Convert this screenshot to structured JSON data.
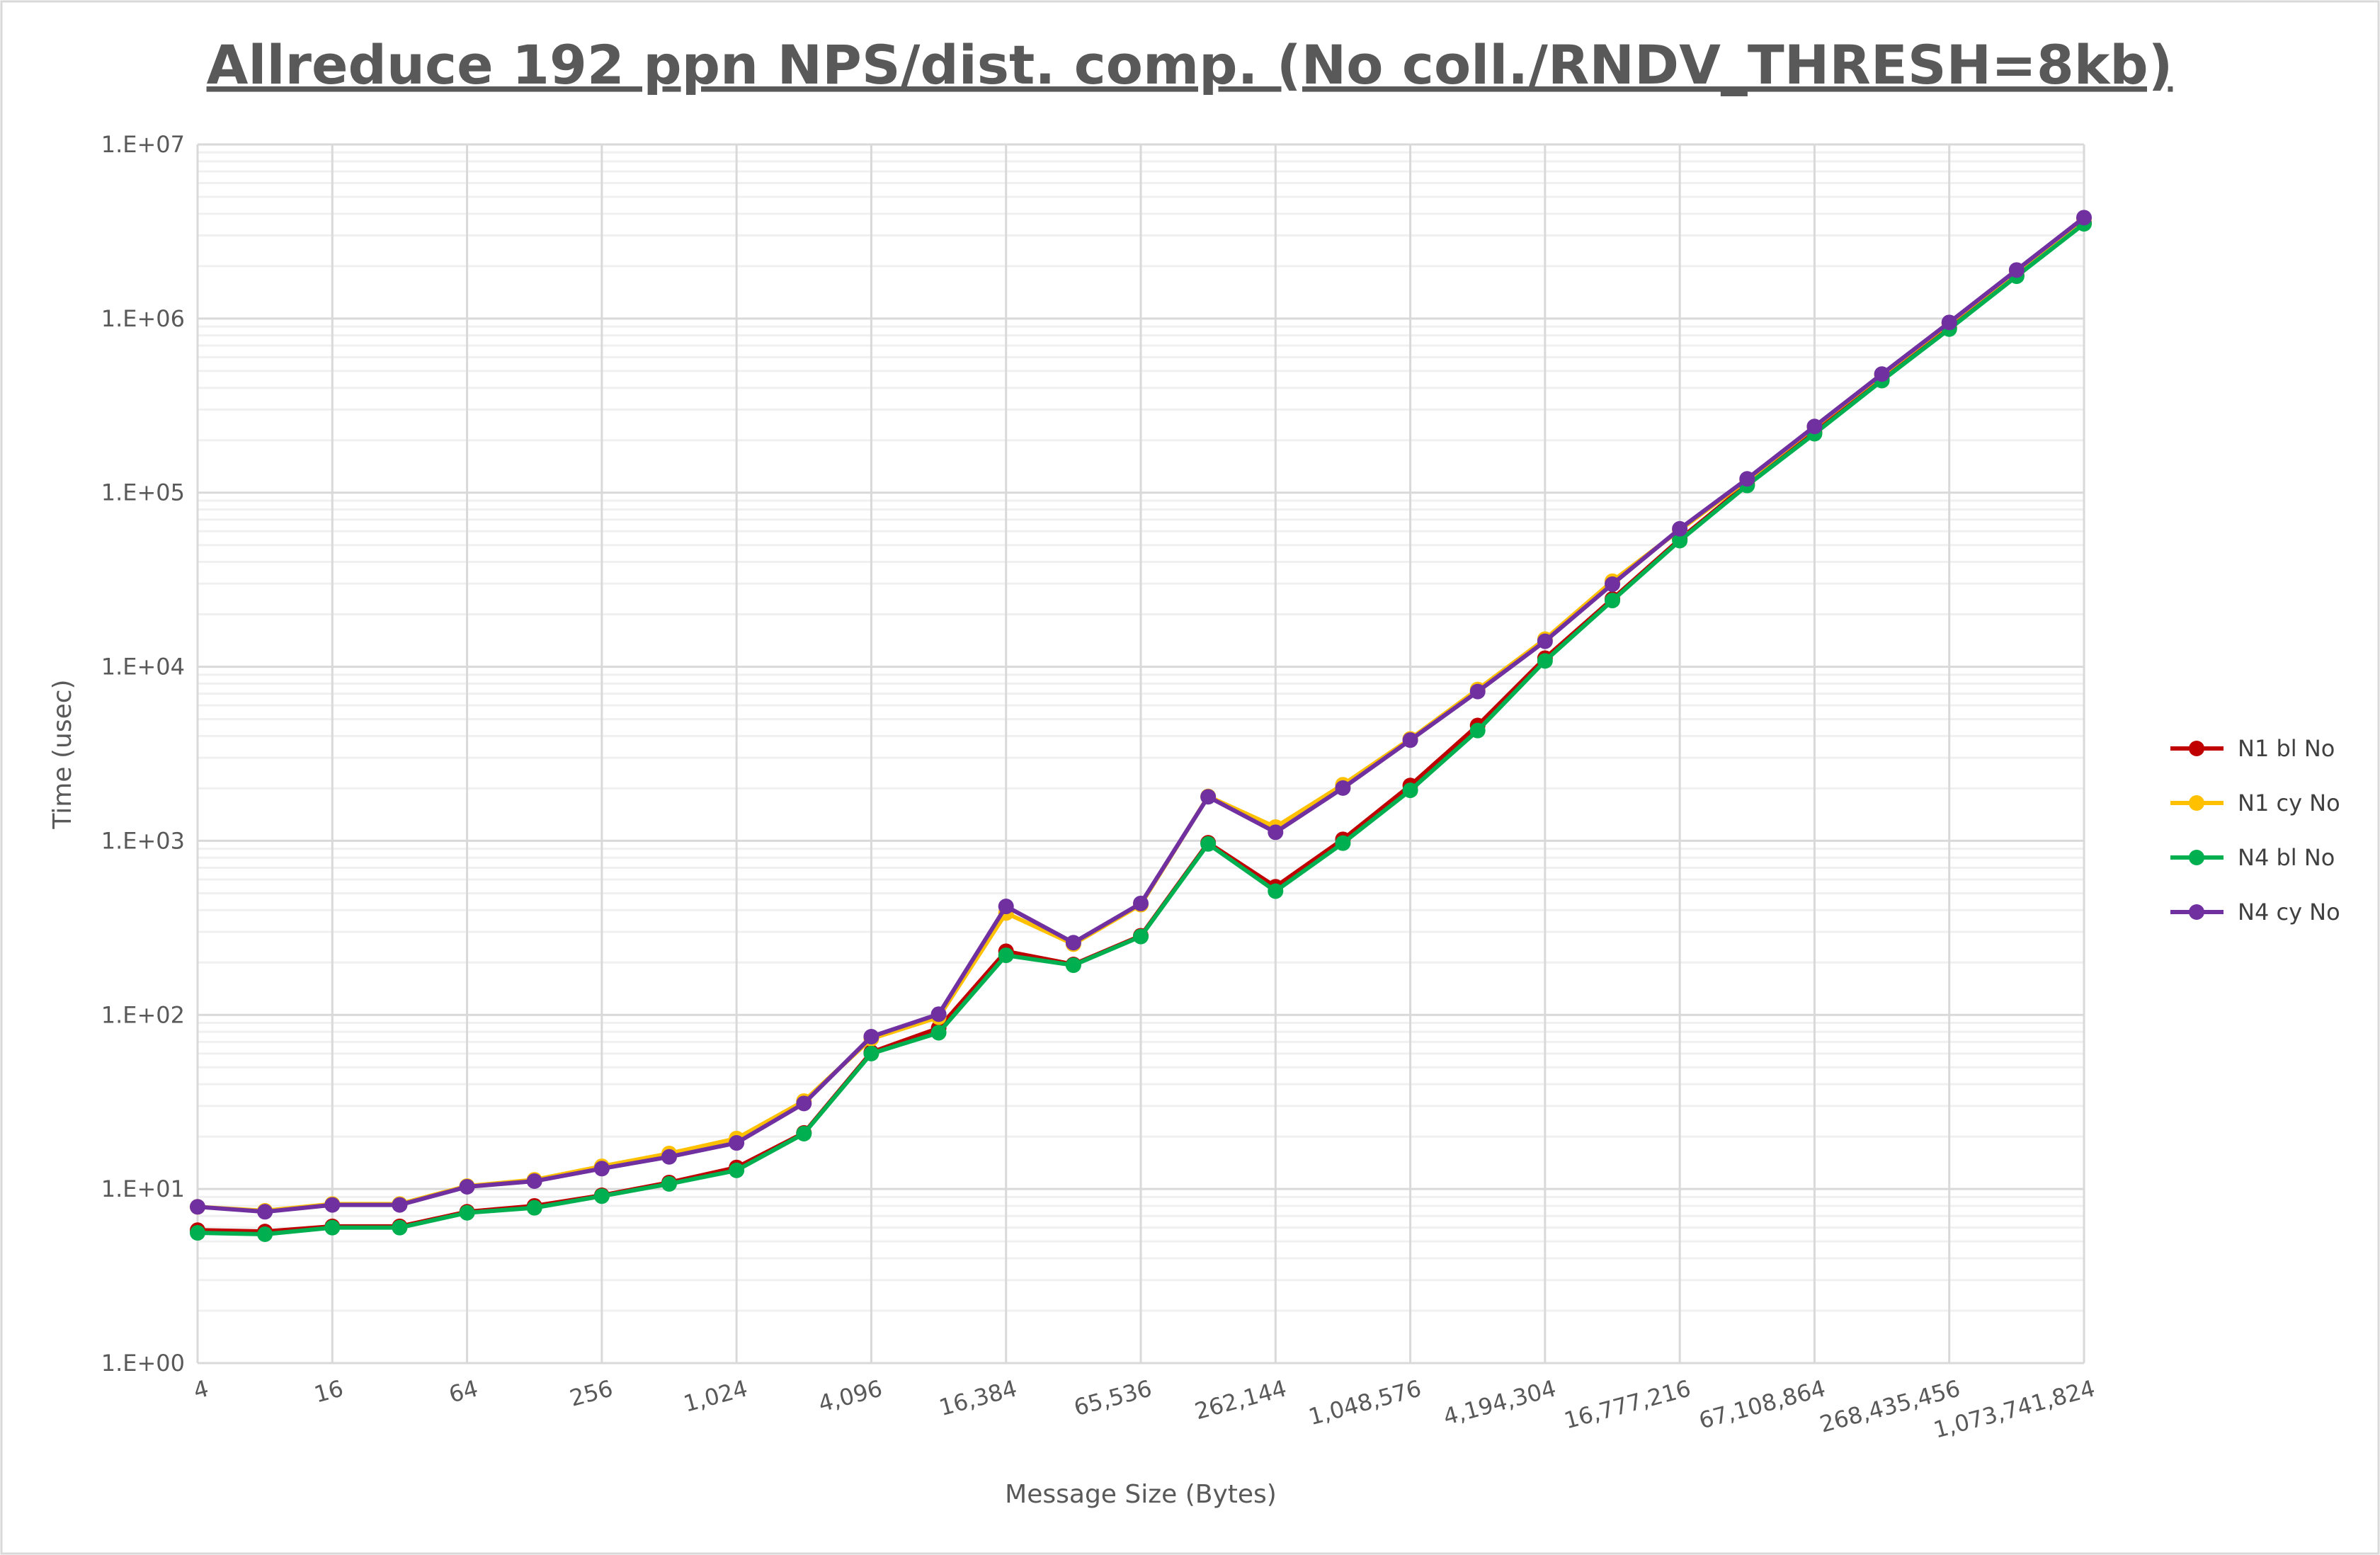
{
  "chart_data": {
    "type": "line",
    "title": "Allreduce 192 ppn NPS/dist. comp. (No coll./RNDV_THRESH=8kb)",
    "xlabel": "Message Size (Bytes)",
    "ylabel": "Time (usec)",
    "y_scale": "log",
    "ylim": [
      1,
      10000000
    ],
    "y_tick_labels": [
      "1.E+00",
      "1.E+01",
      "1.E+02",
      "1.E+03",
      "1.E+04",
      "1.E+05",
      "1.E+06",
      "1.E+07"
    ],
    "x_tick_labels": [
      "4",
      "16",
      "64",
      "256",
      "1,024",
      "4,096",
      "16,384",
      "65,536",
      "262,144",
      "1,048,576",
      "4,194,304",
      "16,777,216",
      "67,108,864",
      "268,435,456",
      "1,073,741,824"
    ],
    "x": [
      4,
      8,
      16,
      32,
      64,
      128,
      256,
      512,
      1024,
      2048,
      4096,
      8192,
      16384,
      32768,
      65536,
      131072,
      262144,
      524288,
      1048576,
      2097152,
      4194304,
      8388608,
      16777216,
      33554432,
      67108864,
      134217728,
      268435456,
      536870912,
      1073741824
    ],
    "grid": true,
    "legend_position": "right",
    "series": [
      {
        "name": "N1 bl No",
        "color": "#C00000",
        "values": [
          5.8,
          5.7,
          6.1,
          6.1,
          7.4,
          8.0,
          9.2,
          10.9,
          13.3,
          21,
          61,
          84,
          232,
          195,
          285,
          975,
          545,
          1020,
          2080,
          4600,
          11200,
          24500,
          54000,
          112000,
          222000,
          445000,
          880000,
          1770000,
          3550000
        ]
      },
      {
        "name": "N1 cy No",
        "color": "#FFC000",
        "values": [
          7.9,
          7.5,
          8.2,
          8.2,
          10.4,
          11.3,
          13.5,
          16,
          19.5,
          32,
          73,
          97,
          385,
          255,
          430,
          1800,
          1200,
          2100,
          3850,
          7400,
          14400,
          31000,
          61000,
          118000,
          238000,
          475000,
          940000,
          1880000,
          3750000
        ]
      },
      {
        "name": "N4 bl No",
        "color": "#00B050",
        "values": [
          5.6,
          5.5,
          6.0,
          6.0,
          7.3,
          7.8,
          9.1,
          10.7,
          12.8,
          20.8,
          60,
          79,
          220,
          193,
          282,
          960,
          514,
          970,
          1950,
          4300,
          10800,
          24000,
          53000,
          110000,
          218000,
          440000,
          870000,
          1750000,
          3500000
        ]
      },
      {
        "name": "N4 cy No",
        "color": "#7030A0",
        "values": [
          7.9,
          7.4,
          8.1,
          8.1,
          10.3,
          11.1,
          13.1,
          15.3,
          18.4,
          31,
          75,
          101,
          420,
          260,
          437,
          1790,
          1120,
          2010,
          3790,
          7200,
          14000,
          29800,
          62000,
          120000,
          240000,
          480000,
          950000,
          1900000,
          3800000
        ]
      }
    ]
  }
}
